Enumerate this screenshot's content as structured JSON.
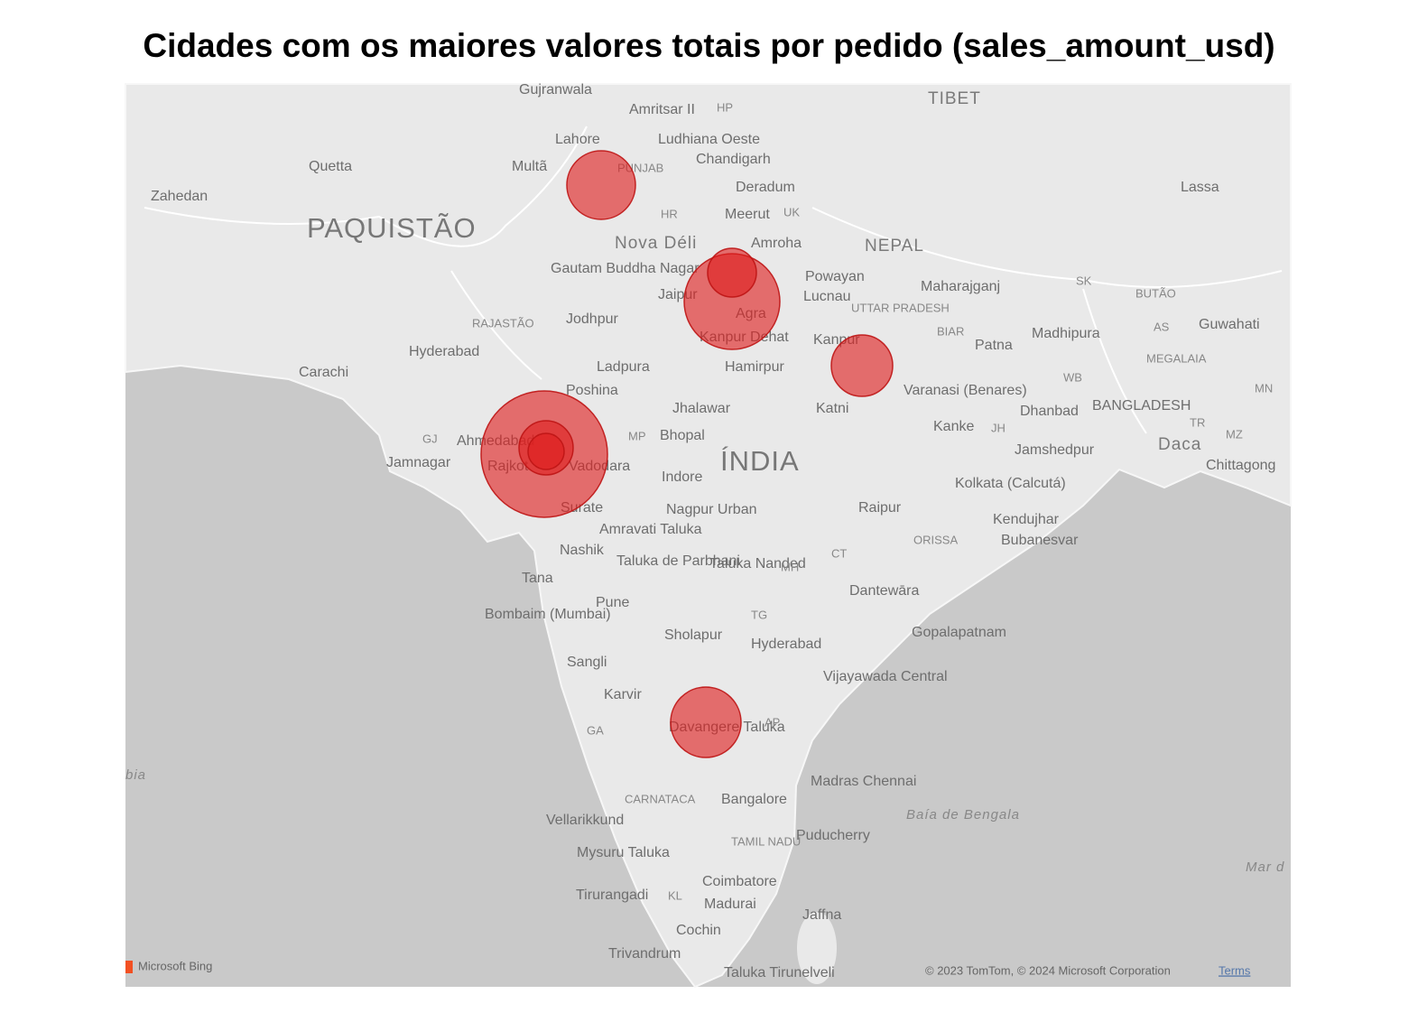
{
  "title": "Cidades com os maiores valores totais por pedido (sales_amount_usd)",
  "map": {
    "labels": [
      "Gujranwala",
      "Amritsar II",
      "HP",
      "TIBET",
      "Lahore",
      "Ludhiana Oeste",
      "Chandigarh",
      "Quetta",
      "Multã",
      "PUNJAB",
      "Deradum",
      "Lassa",
      "Zahedan",
      "HR",
      "Meerut",
      "UK",
      "PAQUISTÃO",
      "Nova Déli",
      "Amroha",
      "NEPAL",
      "Gautam Buddha Nagar",
      "Powayan",
      "Lucnau",
      "UTTAR PRADESH",
      "Maharajganj",
      "SK",
      "BUTÃO",
      "RAJASTÃO",
      "Jodhpur",
      "Jaipur",
      "Agra",
      "BIAR",
      "Madhipura",
      "AS",
      "Guwahati",
      "Hyderabad",
      "Kanpur Dehat",
      "Kanpur",
      "Patna",
      "MEGALAIA",
      "Carachi",
      "Ladpura",
      "Hamirpur",
      "Varanasi (Benares)",
      "WB",
      "Poshina",
      "MN",
      "Jhalawar",
      "Katni",
      "Dhanbad",
      "BANGLADESH",
      "GJ",
      "Ahmedabad",
      "MP",
      "Bhopal",
      "Kanke",
      "JH",
      "TR",
      "Jamnagar",
      "Rajkot",
      "Vadodara",
      "ÍNDIA",
      "Jamshedpur",
      "Daca",
      "MZ",
      "Indore",
      "Chittagong",
      "Kolkata (Calcutá)",
      "Surate",
      "Nagpur Urban",
      "Raipur",
      "Amravati Taluka",
      "Kendujhar",
      "Nashik",
      "ORISSA",
      "Bubanesvar",
      "Taluka de Parbhani",
      "Taluka Nanded",
      "MH",
      "CT",
      "Tana",
      "Dantewāra",
      "Pune",
      "Bombaim (Mumbai)",
      "TG",
      "Sholapur",
      "Hyderabad",
      "Gopalapatnam",
      "Sangli",
      "Vijayawada Central",
      "Karvir",
      "Davangere Taluka",
      "AP",
      "GA",
      "Madras Chennai",
      "CARNATACA",
      "Bangalore",
      "Baía de Bengala",
      "Vellarikkund",
      "Puducherry",
      "Mysuru Taluka",
      "TAMIL NADU",
      "Mar d",
      "Coimbatore",
      "Tirurangadi",
      "KL",
      "Madurai",
      "Jaffna",
      "Cochin",
      "Trivandrum",
      "Taluka Tirunelveli",
      "bia"
    ]
  },
  "attribution": {
    "provider": "Microsoft Bing",
    "copyright": "© 2023 TomTom, © 2024 Microsoft Corporation",
    "terms": "Terms"
  }
}
